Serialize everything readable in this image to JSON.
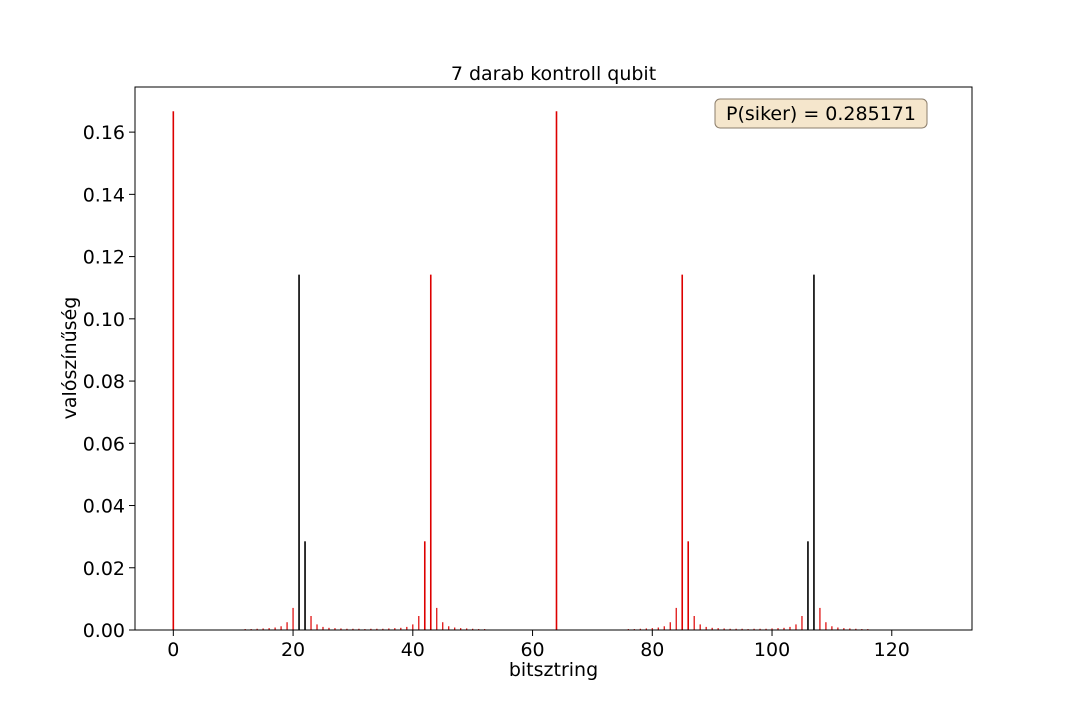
{
  "chart_data": {
    "type": "bar",
    "title": "7 darab kontroll qubit",
    "xlabel": "bitsztring",
    "ylabel": "valószínűség",
    "xlim": [
      -6.4,
      133.4
    ],
    "ylim": [
      0,
      0.1745
    ],
    "xticks": [
      0,
      20,
      40,
      60,
      80,
      100,
      120
    ],
    "yticks": [
      0.0,
      0.02,
      0.04,
      0.06,
      0.08,
      0.1,
      0.12,
      0.14,
      0.16
    ],
    "annotation": "P(siker) = 0.285171",
    "colors": {
      "highlight": "#dd0000",
      "default": "#000000",
      "annotation_bg": "#f5e6cc",
      "annotation_border": "#8b7d6b"
    },
    "series": [
      {
        "color": "red",
        "x": [
          0,
          64
        ],
        "values": [
          0.1667,
          0.1667
        ]
      },
      {
        "color": "black",
        "x": [
          21,
          107
        ],
        "values": [
          0.1142,
          0.1142
        ]
      },
      {
        "color": "black",
        "x": [
          22,
          106
        ],
        "values": [
          0.0285,
          0.0285
        ]
      },
      {
        "color": "red",
        "x": [
          43,
          85
        ],
        "values": [
          0.1142,
          0.1142
        ]
      },
      {
        "color": "red",
        "x": [
          42,
          86
        ],
        "values": [
          0.0285,
          0.0285
        ]
      },
      {
        "color": "red",
        "x": [
          20,
          23,
          41,
          44,
          84,
          87,
          105,
          108
        ],
        "values": [
          0.0071,
          0.0045,
          0.0045,
          0.0071,
          0.0071,
          0.0045,
          0.0045,
          0.0071
        ]
      },
      {
        "color": "red",
        "x": [
          19,
          24,
          40,
          45,
          83,
          88,
          104,
          109
        ],
        "values": [
          0.0025,
          0.0018,
          0.0018,
          0.0025,
          0.0025,
          0.0018,
          0.0018,
          0.0025
        ]
      },
      {
        "color": "red",
        "x": [
          18,
          25,
          39,
          46,
          82,
          89,
          103,
          110
        ],
        "values": [
          0.0012,
          0.001,
          0.001,
          0.0012,
          0.0012,
          0.001,
          0.001,
          0.0012
        ]
      },
      {
        "color": "red",
        "x": [
          12,
          13,
          14,
          15,
          16,
          17,
          26,
          27,
          28,
          29,
          30,
          31,
          32,
          33,
          34,
          35,
          36,
          37,
          38,
          47,
          48,
          49,
          50,
          51,
          52,
          76,
          77,
          78,
          79,
          80,
          81,
          90,
          91,
          92,
          93,
          94,
          95,
          96,
          97,
          98,
          99,
          100,
          101,
          102,
          111,
          112,
          113,
          114,
          115,
          116
        ],
        "values": [
          0.0003,
          0.0003,
          0.0004,
          0.0005,
          0.0006,
          0.0008,
          0.0007,
          0.0006,
          0.0005,
          0.0004,
          0.0004,
          0.0004,
          0.0003,
          0.0004,
          0.0004,
          0.0004,
          0.0005,
          0.0006,
          0.0007,
          0.0008,
          0.0006,
          0.0005,
          0.0004,
          0.0003,
          0.0003,
          0.0003,
          0.0003,
          0.0004,
          0.0005,
          0.0006,
          0.0008,
          0.0007,
          0.0006,
          0.0005,
          0.0004,
          0.0004,
          0.0004,
          0.0003,
          0.0004,
          0.0004,
          0.0004,
          0.0005,
          0.0006,
          0.0007,
          0.0008,
          0.0006,
          0.0005,
          0.0004,
          0.0003,
          0.0003
        ]
      }
    ]
  }
}
